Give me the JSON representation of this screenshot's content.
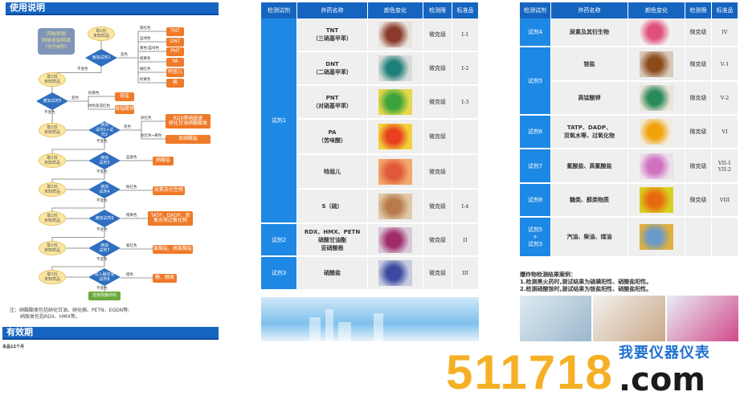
{
  "left": {
    "title": "使用说明",
    "start_box": "开始检测\n固体未知样品\n（分为8份）",
    "sample_label": "取1份\n未知样品",
    "steps": [
      {
        "diamond": "滴加试剂1",
        "yes": "变色",
        "no": "不变色",
        "results": [
          {
            "color": "紫红色",
            "result": "TNT"
          },
          {
            "color": "蓝绿色",
            "result": "DNT"
          },
          {
            "color": "黄色/蓝绿色",
            "result": "PNT"
          },
          {
            "color": "橙黄色",
            "result": "PA"
          },
          {
            "color": "橘红色",
            "result": "特屈儿"
          },
          {
            "color": "棕黄色",
            "result": "硫"
          }
        ]
      },
      {
        "diamond": "滴加试剂5",
        "yes": "变色",
        "no": "不变色",
        "results": [
          {
            "color": "棕黄色",
            "result": "铵盐"
          },
          {
            "color": "绿色变成红色",
            "result": "高锰酸钾"
          }
        ]
      },
      {
        "diamond": "滴加\n试剂1+试\n剂2",
        "yes": "变色",
        "no": "不变色",
        "results": [
          {
            "color": "玫红色",
            "result": "RDX等硝胺类\n硝化甘油硝酸酯类"
          },
          {
            "color": "玫红色→黄色",
            "result": "亚硝酸盐"
          }
        ]
      },
      {
        "diamond": "滴加\n试剂3",
        "yes": "",
        "no": "不变色",
        "results": [
          {
            "color": "蓝紫色",
            "result": "硝酸盐"
          }
        ]
      },
      {
        "diamond": "滴加\n试剂4",
        "yes": "",
        "no": "不变色",
        "results": [
          {
            "color": "粉红色",
            "result": "尿素及衍生物"
          }
        ]
      },
      {
        "diamond": "滴加试剂6",
        "yes": "",
        "no": "不变色",
        "results": [
          {
            "color": "橙黄色",
            "result": "TATP、DADP、双\n氧水等过氧化物"
          }
        ]
      },
      {
        "diamond": "滴加\n试剂7",
        "yes": "",
        "no": "不变色",
        "results": [
          {
            "color": "紫红色",
            "result": "氯酸盐、高氯酸盐"
          }
        ]
      },
      {
        "diamond": "加入碱溶液\n试剂8",
        "yes": "",
        "no": "不变色",
        "results": [
          {
            "color": "橙色",
            "result": "糖、醇类"
          }
        ]
      }
    ],
    "final_result": "非常规爆炸料",
    "note_lines": [
      "注：硝酸酯类包括硝化甘油、硝化棉、PETN、EGDN等;",
      "硝胺类包括RDX、HMX等。"
    ],
    "validity_title": "有效期",
    "validity_text": "本品12个月"
  },
  "headers": [
    "检测试剂",
    "炸药名称",
    "颜色变化",
    "检测限",
    "标准品"
  ],
  "middle_table": [
    {
      "reagent": "试剂1",
      "rows": [
        {
          "name": "TNT\n（三硝基甲苯）",
          "swatch": [
            "#8a3a2a",
            "#e9e2dc"
          ],
          "limit": "微克级",
          "std": "I-1"
        },
        {
          "name": "DNT\n（二硝基甲苯）",
          "swatch": [
            "#1f7f7a",
            "#d8dcd8"
          ],
          "limit": "微克级",
          "std": "I-2"
        },
        {
          "name": "PNT\n（对硝基甲苯）",
          "swatch": [
            "#3aa33a",
            "#e6d84a"
          ],
          "limit": "微克级",
          "std": "I-3"
        },
        {
          "name": "PA\n（苦味酸）",
          "swatch": [
            "#e8401e",
            "#f2d23a"
          ],
          "limit": "微克级",
          "std": ""
        },
        {
          "name": "特屈儿",
          "swatch": [
            "#e0583a",
            "#f3a86b"
          ],
          "limit": "微克级",
          "std": ""
        },
        {
          "name": "S（硫）",
          "swatch": [
            "#b87a4a",
            "#e0c8a8"
          ],
          "limit": "微克级",
          "std": "I-4"
        }
      ]
    },
    {
      "reagent": "试剂2",
      "rows": [
        {
          "name": "RDX、HMX、PETN\n硝酸甘油酯\n亚硝酸根",
          "swatch": [
            "#a02a6a",
            "#d8c8d8"
          ],
          "limit": "微克级",
          "std": "II"
        }
      ]
    },
    {
      "reagent": "试剂3",
      "rows": [
        {
          "name": "硝酸盐",
          "swatch": [
            "#3a4aa0",
            "#c8cce0"
          ],
          "limit": "微克级",
          "std": "III"
        }
      ]
    }
  ],
  "right_table": [
    {
      "reagent": "试剂4",
      "rows": [
        {
          "name": "尿素及其衍生物",
          "swatch": [
            "#e0507a",
            "#f2f0f0"
          ],
          "limit": "微克级",
          "std": "IV"
        }
      ]
    },
    {
      "reagent": "试剂5",
      "rows": [
        {
          "name": "铵盐",
          "swatch": [
            "#8a4a1a",
            "#d8c8b8"
          ],
          "limit": "微克级",
          "std": "V-1"
        },
        {
          "name": "高锰酸钾",
          "swatch": [
            "#2a8a5a",
            "#ece4d8"
          ],
          "limit": "微克级",
          "std": "V-2"
        }
      ]
    },
    {
      "reagent": "试剂6",
      "rows": [
        {
          "name": "TATP、DADP、\n双氧水等、过氧化物",
          "swatch": [
            "#f2a20a",
            "#f2ecdf"
          ],
          "limit": "微克级",
          "std": "VI"
        }
      ]
    },
    {
      "reagent": "试剂7",
      "rows": [
        {
          "name": "氯酸盐、高氯酸盐",
          "swatch": [
            "#d070c0",
            "#ece0ec"
          ],
          "limit": "微克级",
          "std": "VII-1\nVII-2"
        }
      ]
    },
    {
      "reagent": "试剂8",
      "rows": [
        {
          "name": "糖类、醇类物质",
          "swatch": [
            "#e86a10",
            "#d8d020"
          ],
          "limit": "微克级",
          "std": "VIII"
        }
      ]
    },
    {
      "reagent": "试剂5\n+\n试剂3",
      "rows": [
        {
          "name": "汽油、柴油、煤油",
          "swatch": [
            "#6a9ac8",
            "#e0b040"
          ],
          "limit": "",
          "std": ""
        }
      ]
    }
  ],
  "cases": {
    "title": "爆炸物检测结果案例：",
    "lines": [
      "1.检测黑火药时,测试结果为硫磺阳性、硝酸盐阳性。",
      "2.检测硝酸铵时,测试结果为铵盐阳性、硝酸盐阳性。"
    ]
  },
  "watermark": {
    "number": "511718",
    "domain": ".com",
    "cn": "我要仪器仪表"
  }
}
